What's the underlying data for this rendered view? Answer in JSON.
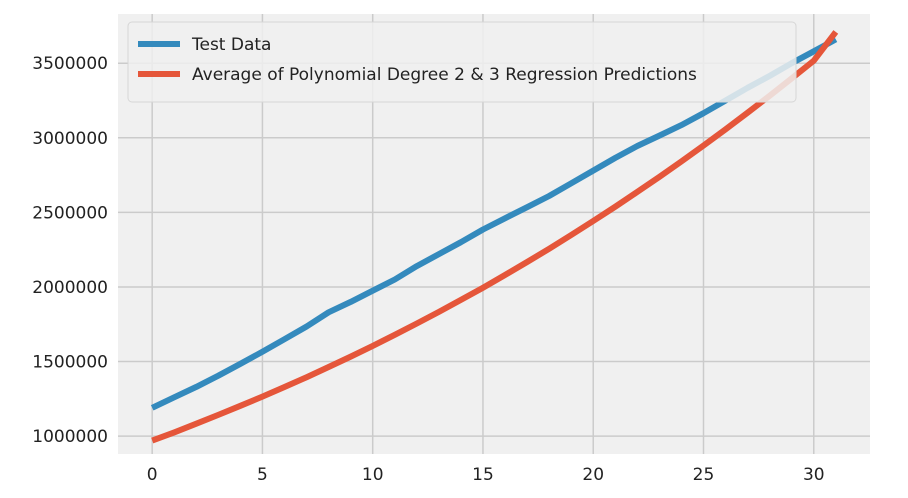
{
  "chart_data": {
    "type": "line",
    "title": "",
    "xlabel": "",
    "ylabel": "",
    "xlim": [
      -1.55,
      32.55
    ],
    "ylim": [
      880000,
      3830000
    ],
    "x_ticks": [
      0,
      5,
      10,
      15,
      20,
      25,
      30
    ],
    "y_ticks": [
      1000000,
      1500000,
      2000000,
      2500000,
      3000000,
      3500000
    ],
    "grid": true,
    "legend_position": "top-left",
    "background_color": "#f0f0f0",
    "grid_color": "#cbcbcb",
    "series": [
      {
        "name": "Test Data",
        "color": "#348abd",
        "x": [
          0,
          1,
          2,
          3,
          4,
          5,
          6,
          7,
          8,
          9,
          10,
          11,
          12,
          13,
          14,
          15,
          16,
          17,
          18,
          19,
          20,
          21,
          22,
          23,
          24,
          25,
          26,
          27,
          28,
          29,
          30,
          31
        ],
        "values": [
          1190000,
          1260000,
          1330000,
          1405000,
          1485000,
          1565000,
          1650000,
          1735000,
          1830000,
          1900000,
          1975000,
          2050000,
          2140000,
          2220000,
          2300000,
          2385000,
          2460000,
          2535000,
          2610000,
          2695000,
          2780000,
          2865000,
          2945000,
          3015000,
          3085000,
          3165000,
          3250000,
          3335000,
          3415000,
          3500000,
          3580000,
          3660000
        ]
      },
      {
        "name": "Average of Polynomial Degree 2 & 3 Regression Predictions",
        "color": "#e5563a",
        "x": [
          0,
          1,
          2,
          3,
          4,
          5,
          6,
          7,
          8,
          9,
          10,
          11,
          12,
          13,
          14,
          15,
          16,
          17,
          18,
          19,
          20,
          21,
          22,
          23,
          24,
          25,
          26,
          27,
          28,
          29,
          30,
          31
        ],
        "values": [
          970000,
          1025000,
          1083000,
          1142000,
          1203000,
          1265000,
          1329000,
          1395000,
          1463000,
          1533000,
          1605000,
          1679000,
          1755000,
          1833000,
          1913000,
          1995000,
          2080000,
          2167000,
          2256000,
          2348000,
          2442000,
          2538000,
          2637000,
          2738000,
          2842000,
          2948000,
          3057000,
          3168000,
          3282000,
          3398000,
          3517000,
          3710000
        ]
      }
    ]
  }
}
